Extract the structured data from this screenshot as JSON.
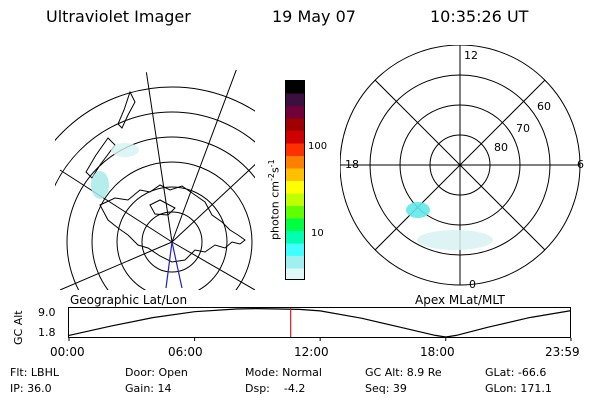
{
  "header": {
    "title": "Ultraviolet Imager",
    "date": "19 May 07",
    "time": "10:35:26 UT"
  },
  "colorbar": {
    "unit_label": "photon cm",
    "unit_exp1": "-2",
    "unit_s": "s",
    "unit_exp2": "-1",
    "ticks": [
      "100",
      "10"
    ],
    "colors": [
      "#000000",
      "#3b0f3f",
      "#70003a",
      "#a00000",
      "#d00000",
      "#ff3000",
      "#ff8000",
      "#ffc000",
      "#ffff00",
      "#c0ff00",
      "#60ff00",
      "#00ff40",
      "#00ffb0",
      "#40ffff",
      "#a0f0f0",
      "#e0f8f8"
    ]
  },
  "geo_panel": {
    "label": "Geographic Lat/Lon"
  },
  "polar_panel": {
    "label": "Apex MLat/MLT",
    "mlt_labels": [
      "12",
      "18",
      "6",
      "0"
    ],
    "lat_labels": [
      "60",
      "70",
      "80"
    ]
  },
  "altitude_plot": {
    "ylabel": "GC Alt",
    "yticks": [
      "9.0",
      "1.8"
    ],
    "xticks": [
      "00:00",
      "06:00",
      "12:00",
      "18:00",
      "23:59"
    ]
  },
  "info": {
    "flt": "Flt: LBHL",
    "ip": "IP: 36.0",
    "door": "Door: Open",
    "gain": "Gain: 14",
    "mode": "Mode: Normal",
    "dsp": "Dsp:    -4.2",
    "gcalt": "GC Alt: 8.9 Re",
    "seq": "Seq: 39",
    "glat": "GLat: -66.6",
    "glon": "GLon: 171.1"
  },
  "chart_data": {
    "type": "line",
    "title": "",
    "xlabel": "",
    "ylabel": "GC Alt",
    "x_range": [
      "00:00",
      "23:59"
    ],
    "yticks": [
      9.0,
      1.8
    ],
    "ylim": [
      1.8,
      9.0
    ],
    "current_time": "10:35:26",
    "series": [
      {
        "x": [
          "00:00",
          "02:00",
          "04:00",
          "06:00",
          "08:00",
          "09:00",
          "10:00",
          "11:00",
          "12:00",
          "14:00",
          "16:00",
          "17:30",
          "18:00",
          "18:30",
          "20:00",
          "22:00",
          "23:59"
        ],
        "values": [
          2.2,
          4.6,
          6.8,
          8.3,
          9.0,
          9.1,
          9.0,
          8.9,
          8.5,
          6.6,
          4.1,
          2.2,
          1.8,
          2.2,
          4.3,
          6.8,
          8.6
        ]
      }
    ]
  }
}
